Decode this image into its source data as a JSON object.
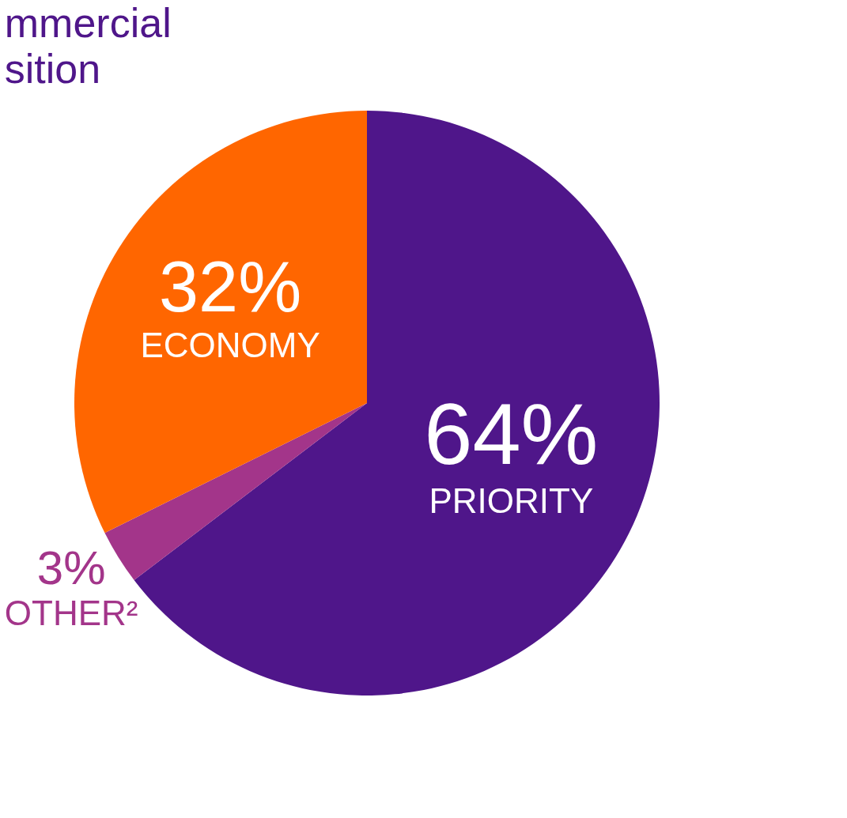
{
  "chart_data": {
    "type": "pie",
    "title": "mmercial\nsition",
    "categories": [
      "PRIORITY",
      "OTHER²",
      "ECONOMY"
    ],
    "values": [
      64,
      3,
      32
    ],
    "colors": [
      "#4f168a",
      "#a3358a",
      "#ff6600"
    ],
    "value_labels": [
      "64%",
      "3%",
      "32%"
    ],
    "legend": false
  }
}
